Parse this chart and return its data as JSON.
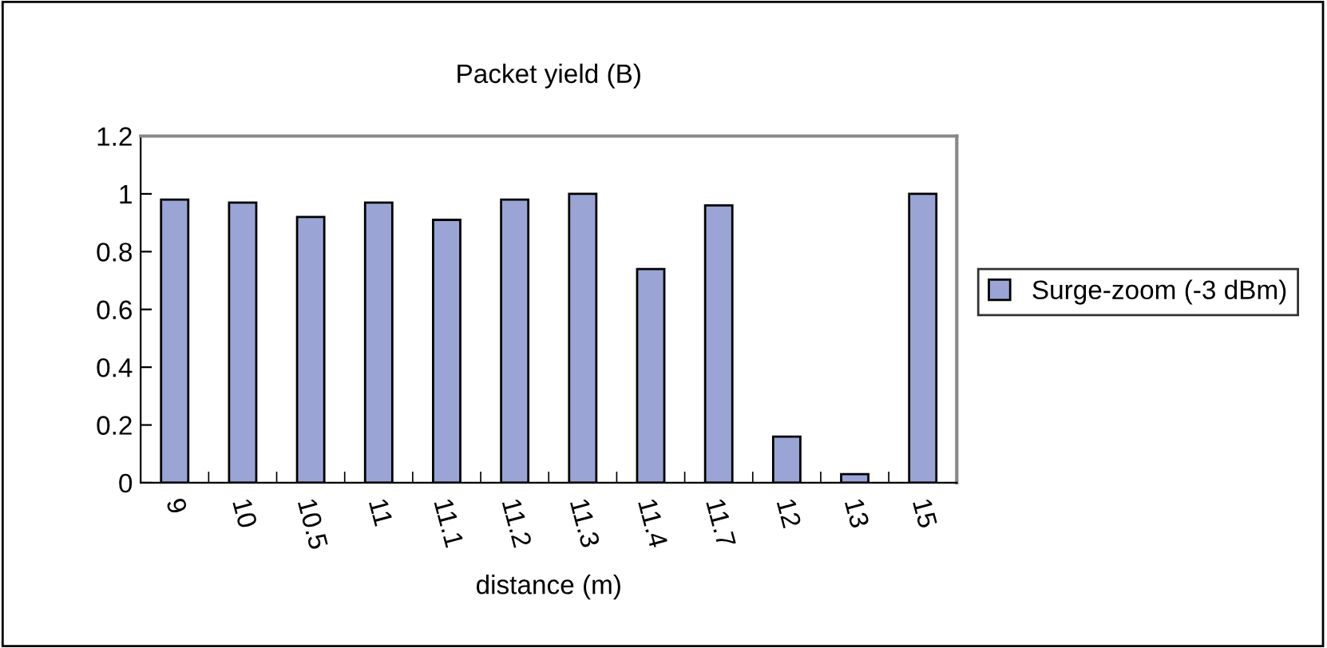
{
  "chart_data": {
    "type": "bar",
    "title": "Packet yield (B)",
    "xlabel": "distance (m)",
    "categories": [
      "9",
      "10",
      "10.5",
      "11",
      "11.1",
      "11.2",
      "11.3",
      "11.4",
      "11.7",
      "12",
      "13",
      "15"
    ],
    "series": [
      {
        "name": "Surge-zoom (-3 dBm)",
        "color": "#9aa5d5",
        "values": [
          0.98,
          0.97,
          0.92,
          0.97,
          0.91,
          0.98,
          1.0,
          0.74,
          0.96,
          0.16,
          0.03,
          1.0
        ]
      }
    ],
    "ylim": [
      0,
      1.2
    ],
    "yticks": [
      0,
      0.2,
      0.4,
      0.6,
      0.8,
      1,
      1.2
    ],
    "grid": false,
    "legend": "right"
  }
}
